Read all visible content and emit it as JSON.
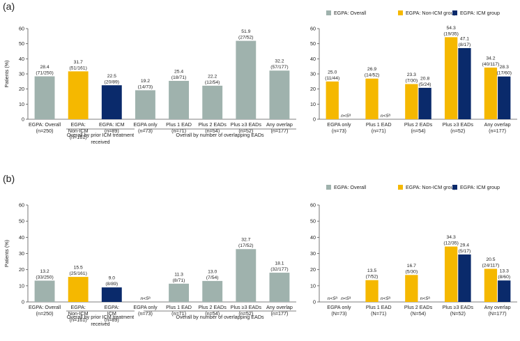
{
  "colors": {
    "overall": "#9fb2ad",
    "nonicm": "#f5b800",
    "icm": "#0a2a6b",
    "axis": "#555555",
    "text": "#222222"
  },
  "panels": [
    {
      "label": "(a)",
      "legend": [
        "EGPA: Overall",
        "EGPA: Non-ICM group",
        "EGPA: ICM group"
      ],
      "group_labels": [
        "Overall by prior ICM treatment received",
        "Overall by number of overlapping EADs"
      ]
    },
    {
      "label": "(b)",
      "legend": [
        "EGPA: Overall",
        "EGPA: Non-ICM group",
        "EGPA: ICM group"
      ],
      "group_labels": [
        "Overall by prior ICM treatment received",
        "Overall by number of overlapping EADs"
      ]
    }
  ],
  "chart_data": [
    {
      "id": "a-left",
      "type": "bar",
      "ylabel": "Patients (%)",
      "ylim": [
        0,
        60
      ],
      "yticks": [
        0,
        10,
        20,
        30,
        40,
        50,
        60
      ],
      "categories": [
        [
          "EGPA: Overall",
          "(n=250)"
        ],
        [
          "EGPA:",
          "Non-ICM",
          "(n=161)"
        ],
        [
          "EGPA: ICM",
          "(n=89)"
        ],
        [
          "EGPA only",
          "(n=73)"
        ],
        [
          "Plus 1 EAD",
          "(n=71)"
        ],
        [
          "Plus 2 EADs",
          "(n=54)"
        ],
        [
          "Plus ≥3 EADs",
          "(n=52)"
        ],
        [
          "Any overlap",
          "(n=177)"
        ]
      ],
      "values": [
        28.4,
        31.7,
        22.5,
        19.2,
        25.4,
        22.2,
        51.9,
        32.2
      ],
      "labels": [
        [
          "28.4",
          "(71/250)"
        ],
        [
          "31.7",
          "(51/161)"
        ],
        [
          "22.5",
          "(20/89)"
        ],
        [
          "19.2",
          "(14/73)"
        ],
        [
          "25.4",
          "(18/71)"
        ],
        [
          "22.2",
          "(12/54)"
        ],
        [
          "51.9",
          "(27/52)"
        ],
        [
          "32.2",
          "(57/177)"
        ]
      ],
      "colors": [
        "overall",
        "nonicm",
        "icm",
        "overall",
        "overall",
        "overall",
        "overall",
        "overall"
      ]
    },
    {
      "id": "a-right",
      "type": "bar",
      "ylim": [
        0,
        60
      ],
      "yticks": [
        0,
        10,
        20,
        30,
        40,
        50,
        60
      ],
      "categories": [
        [
          "EGPA only",
          "(n=73)"
        ],
        [
          "Plus 1 EAD",
          "(n=71)"
        ],
        [
          "Plus 2 EADs",
          "(n=54)"
        ],
        [
          "Plus ≥3 EADs",
          "(n=52)"
        ],
        [
          "Any overlap",
          "(n=177)"
        ]
      ],
      "series": [
        {
          "name": "EGPA: Non-ICM group",
          "color": "nonicm",
          "values": [
            25.0,
            26.9,
            23.3,
            54.3,
            34.2
          ],
          "labels": [
            [
              "25.0",
              "(11/44)"
            ],
            [
              "26.9",
              "(14/52)"
            ],
            [
              "23.3",
              "(7/30)"
            ],
            [
              "54.3",
              "(19/35)"
            ],
            [
              "34.2",
              "(40/117)"
            ]
          ]
        },
        {
          "name": "EGPA: ICM group",
          "color": "icm",
          "values": [
            null,
            null,
            20.8,
            47.1,
            28.3
          ],
          "labels": [
            [
              "n<5ᵃ"
            ],
            [
              "n<5ᵃ"
            ],
            [
              "20.8",
              "(5/24)"
            ],
            [
              "47.1",
              "(8/17)"
            ],
            [
              "28.3",
              "(17/60)"
            ]
          ]
        }
      ]
    },
    {
      "id": "b-left",
      "type": "bar",
      "ylabel": "Patients (%)",
      "ylim": [
        0,
        60
      ],
      "yticks": [
        0,
        10,
        20,
        30,
        40,
        50,
        60
      ],
      "categories": [
        [
          "EGPA: Overall",
          "(n=250)"
        ],
        [
          "EGPA:",
          "Non-ICM",
          "(n=161)"
        ],
        [
          "EGPA:",
          "ICM",
          "(n=89)"
        ],
        [
          "EGPA only",
          "(n=73)"
        ],
        [
          "Plus 1 EAD",
          "(n=71)"
        ],
        [
          "Plus 2 EADs",
          "(n=54)"
        ],
        [
          "Plus ≥3 EADs",
          "(n=52)"
        ],
        [
          "Any overlap",
          "(n=177)"
        ]
      ],
      "values": [
        13.2,
        15.5,
        9.0,
        null,
        11.3,
        13.0,
        32.7,
        18.1
      ],
      "labels": [
        [
          "13.2",
          "(33/250)"
        ],
        [
          "15.5",
          "(25/161)"
        ],
        [
          "9.0",
          "(8/89)"
        ],
        [
          "n<5ᵃ"
        ],
        [
          "11.3",
          "(8/71)"
        ],
        [
          "13.0",
          "(7/54)"
        ],
        [
          "32.7",
          "(17/52)"
        ],
        [
          "18.1",
          "(32/177)"
        ]
      ],
      "colors": [
        "overall",
        "nonicm",
        "icm",
        "overall",
        "overall",
        "overall",
        "overall",
        "overall"
      ]
    },
    {
      "id": "b-right",
      "type": "bar",
      "ylim": [
        0,
        60
      ],
      "yticks": [
        0,
        10,
        20,
        30,
        40,
        50,
        60
      ],
      "categories": [
        [
          "EGPA only",
          "(N=73)"
        ],
        [
          "Plus 1 EAD",
          "(N=71)"
        ],
        [
          "Plus 2 EADs",
          "(N=54)"
        ],
        [
          "Plus ≥3 EADs",
          "(N=52)"
        ],
        [
          "Any overlap",
          "(N=177)"
        ]
      ],
      "series": [
        {
          "name": "EGPA: Non-ICM group",
          "color": "nonicm",
          "values": [
            null,
            13.5,
            16.7,
            34.3,
            20.5
          ],
          "labels": [
            [
              "n<5ᵃ"
            ],
            [
              "13.5",
              "(7/52)"
            ],
            [
              "16.7",
              "(5/30)"
            ],
            [
              "34.3",
              "(12/35)"
            ],
            [
              "20.5",
              "(24/117)"
            ]
          ]
        },
        {
          "name": "EGPA: ICM group",
          "color": "icm",
          "values": [
            null,
            null,
            null,
            29.4,
            13.3
          ],
          "labels": [
            [
              "n<5ᵃ"
            ],
            [
              "n<5ᵃ"
            ],
            [
              "n<5ᵃ"
            ],
            [
              "29.4",
              "(5/17)"
            ],
            [
              "13.3",
              "(8/60)"
            ]
          ]
        }
      ]
    }
  ]
}
